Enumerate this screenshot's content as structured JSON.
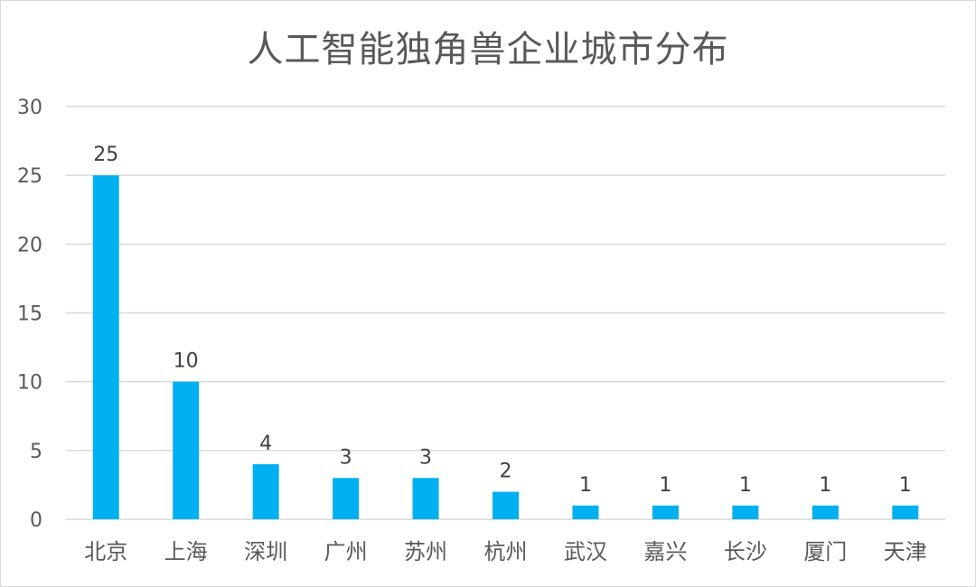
{
  "chart_data": {
    "type": "bar",
    "title": "人工智能独角兽企业城市分布",
    "categories": [
      "北京",
      "上海",
      "深圳",
      "广州",
      "苏州",
      "杭州",
      "武汉",
      "嘉兴",
      "长沙",
      "厦门",
      "天津"
    ],
    "values": [
      25,
      10,
      4,
      3,
      3,
      2,
      1,
      1,
      1,
      1,
      1
    ],
    "ylim": [
      0,
      30
    ],
    "yticks": [
      0,
      5,
      10,
      15,
      20,
      25,
      30
    ],
    "grid": true,
    "legend": "none",
    "bar_color": "#00b0f0",
    "gridline_color": "#d9d9d9"
  }
}
